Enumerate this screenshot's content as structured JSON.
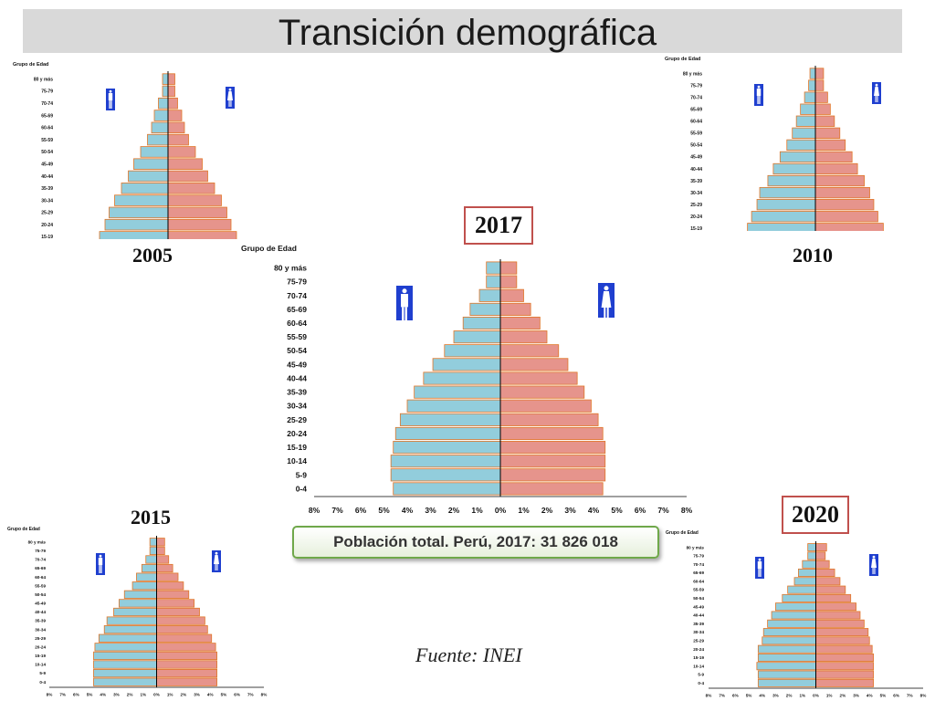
{
  "title": "Transición demográfica",
  "source": "Fuente: INEI",
  "population_note": "Población total. Perú, 2017: 31 826 018",
  "colors": {
    "male": "#92cddc",
    "female": "#e6948c",
    "outline": "#e07628",
    "accent_box": "#c0504d",
    "icon_bg": "#1f3fcf"
  },
  "icons": {
    "male": "male-figure-icon",
    "female": "female-figure-icon"
  },
  "chart_data": [
    {
      "id": "p2005",
      "type": "bar",
      "orientation": "population-pyramid",
      "year_label": "2005",
      "axis_title": "Grupo de Edad",
      "categories": [
        "0-4",
        "5-9",
        "10-14",
        "15-19",
        "20-24",
        "25-29",
        "30-34",
        "35-39",
        "40-44",
        "45-49",
        "50-54",
        "55-59",
        "60-64",
        "65-69",
        "70-74",
        "75-79",
        "80 y más"
      ],
      "male": [
        5.3,
        5.3,
        5.2,
        5.0,
        4.6,
        4.3,
        3.9,
        3.4,
        2.9,
        2.5,
        2.0,
        1.5,
        1.2,
        1.0,
        0.7,
        0.4,
        0.4
      ],
      "female": [
        5.3,
        5.3,
        5.1,
        5.0,
        4.6,
        4.3,
        3.9,
        3.4,
        2.9,
        2.5,
        2.0,
        1.5,
        1.2,
        1.0,
        0.7,
        0.5,
        0.5
      ],
      "xticks": [
        "8%",
        "7%",
        "6%",
        "5%",
        "4%",
        "3%",
        "2%",
        "1%",
        "0%",
        "1%",
        "2%",
        "3%",
        "4%",
        "5%",
        "6%",
        "7%",
        "8%"
      ],
      "xlim": [
        -8,
        8
      ]
    },
    {
      "id": "p2010",
      "type": "bar",
      "orientation": "population-pyramid",
      "year_label": "2010",
      "axis_title": "Grupo de Edad",
      "categories": [
        "0-4",
        "5-9",
        "10-14",
        "15-19",
        "20-24",
        "25-29",
        "30-34",
        "35-39",
        "40-44",
        "45-49",
        "50-54",
        "55-59",
        "60-64",
        "65-69",
        "70-74",
        "75-79",
        "80 y más"
      ],
      "male": [
        5.0,
        5.1,
        5.1,
        5.0,
        4.7,
        4.3,
        4.1,
        3.5,
        3.1,
        2.6,
        2.1,
        1.7,
        1.4,
        1.1,
        0.8,
        0.5,
        0.4
      ],
      "female": [
        5.0,
        5.0,
        5.0,
        5.0,
        4.6,
        4.3,
        4.0,
        3.6,
        3.1,
        2.7,
        2.2,
        1.8,
        1.4,
        1.1,
        0.9,
        0.6,
        0.6
      ],
      "xticks": [
        "8%",
        "7%",
        "6%",
        "5%",
        "4%",
        "3%",
        "2%",
        "1%",
        "0%",
        "1%",
        "2%",
        "3%",
        "4%",
        "5%",
        "6%",
        "7%",
        "8%"
      ],
      "xlim": [
        -8,
        8
      ]
    },
    {
      "id": "p2017",
      "type": "bar",
      "orientation": "population-pyramid",
      "year_label": "2017",
      "axis_title": "Grupo de Edad",
      "categories": [
        "0-4",
        "5-9",
        "10-14",
        "15-19",
        "20-24",
        "25-29",
        "30-34",
        "35-39",
        "40-44",
        "45-49",
        "50-54",
        "55-59",
        "60-64",
        "65-69",
        "70-74",
        "75-79",
        "80 y más"
      ],
      "male": [
        4.6,
        4.7,
        4.7,
        4.6,
        4.5,
        4.3,
        4.0,
        3.7,
        3.3,
        2.9,
        2.4,
        2.0,
        1.6,
        1.3,
        0.9,
        0.6,
        0.6
      ],
      "female": [
        4.4,
        4.5,
        4.5,
        4.5,
        4.4,
        4.2,
        3.9,
        3.6,
        3.3,
        2.9,
        2.5,
        2.0,
        1.7,
        1.3,
        1.0,
        0.7,
        0.7
      ],
      "xticks": [
        "8%",
        "7%",
        "6%",
        "5%",
        "4%",
        "3%",
        "2%",
        "1%",
        "0%",
        "1%",
        "2%",
        "3%",
        "4%",
        "5%",
        "6%",
        "7%",
        "8%"
      ],
      "xlim": [
        -8,
        8
      ]
    },
    {
      "id": "p2015",
      "type": "bar",
      "orientation": "population-pyramid",
      "year_label": "2015",
      "axis_title": "Grupo de Edad",
      "categories": [
        "0-4",
        "5-9",
        "10-14",
        "15-19",
        "20-24",
        "25-29",
        "30-34",
        "35-39",
        "40-44",
        "45-49",
        "50-54",
        "55-59",
        "60-64",
        "65-69",
        "70-74",
        "75-79",
        "80 y más"
      ],
      "male": [
        4.7,
        4.7,
        4.7,
        4.7,
        4.6,
        4.3,
        3.9,
        3.7,
        3.2,
        2.8,
        2.4,
        1.8,
        1.5,
        1.1,
        0.8,
        0.5,
        0.5
      ],
      "female": [
        4.5,
        4.5,
        4.5,
        4.5,
        4.4,
        4.1,
        3.8,
        3.6,
        3.2,
        2.8,
        2.4,
        2.0,
        1.6,
        1.2,
        0.9,
        0.6,
        0.6
      ],
      "xticks": [
        "8%",
        "7%",
        "6%",
        "5%",
        "4%",
        "3%",
        "2%",
        "1%",
        "0%",
        "1%",
        "2%",
        "3%",
        "4%",
        "5%",
        "6%",
        "7%",
        "8%"
      ],
      "xlim": [
        -8,
        8
      ]
    },
    {
      "id": "p2020",
      "type": "bar",
      "orientation": "population-pyramid",
      "year_label": "2020",
      "axis_title": "Grupo de Edad",
      "categories": [
        "0-4",
        "5-9",
        "10-14",
        "15-19",
        "20-24",
        "25-29",
        "30-34",
        "35-39",
        "40-44",
        "45-49",
        "50-54",
        "55-59",
        "60-64",
        "65-69",
        "70-74",
        "75-79",
        "80 y más"
      ],
      "male": [
        4.3,
        4.3,
        4.4,
        4.3,
        4.3,
        4.0,
        3.9,
        3.6,
        3.3,
        3.0,
        2.5,
        2.1,
        1.6,
        1.3,
        1.0,
        0.6,
        0.6
      ],
      "female": [
        4.3,
        4.3,
        4.3,
        4.3,
        4.2,
        4.0,
        3.9,
        3.6,
        3.3,
        3.0,
        2.6,
        2.2,
        1.8,
        1.4,
        1.0,
        0.7,
        0.8
      ],
      "xticks": [
        "8%",
        "7%",
        "6%",
        "5%",
        "4%",
        "3%",
        "2%",
        "1%",
        "0%",
        "1%",
        "2%",
        "3%",
        "4%",
        "5%",
        "6%",
        "7%",
        "8%"
      ],
      "xlim": [
        -8,
        8
      ]
    }
  ]
}
